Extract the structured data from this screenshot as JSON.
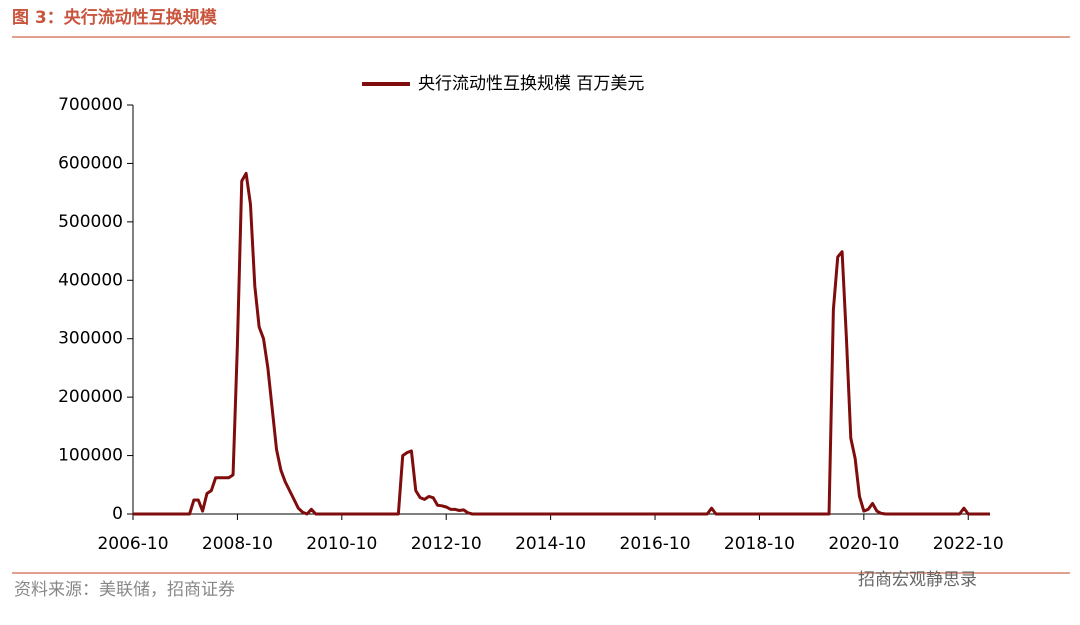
{
  "chart_data": {
    "type": "line",
    "title": "图 3：央行流动性互换规模",
    "source": "资料来源：美联储，招商证券",
    "watermark": "招商宏观静思录",
    "x": [
      "2006-10",
      "2007-11",
      "2007-12",
      "2008-01",
      "2008-02",
      "2008-03",
      "2008-04",
      "2008-05",
      "2008-06",
      "2008-08",
      "2008-09",
      "2008-10",
      "2008-11",
      "2008-12",
      "2009-01",
      "2009-02",
      "2009-03",
      "2009-04",
      "2009-05",
      "2009-06",
      "2009-07",
      "2009-08",
      "2009-09",
      "2009-10",
      "2009-11",
      "2009-12",
      "2010-01",
      "2010-02",
      "2010-03",
      "2010-04",
      "2011-11",
      "2011-12",
      "2012-01",
      "2012-02",
      "2012-03",
      "2012-04",
      "2012-05",
      "2012-06",
      "2012-07",
      "2012-08",
      "2012-09",
      "2012-10",
      "2012-11",
      "2012-12",
      "2013-01",
      "2013-02",
      "2013-03",
      "2013-04",
      "2017-10",
      "2017-11",
      "2017-12",
      "2020-02",
      "2020-03",
      "2020-04",
      "2020-05",
      "2020-06",
      "2020-07",
      "2020-08",
      "2020-09",
      "2020-10",
      "2020-11",
      "2020-12",
      "2021-01",
      "2021-02",
      "2021-03",
      "2022-08",
      "2022-09",
      "2022-10",
      "2023-03"
    ],
    "series": [
      {
        "name": "央行流动性互换规模 百万美元",
        "color": "#7f0d0d",
        "values": [
          0,
          0,
          24000,
          24000,
          5000,
          35000,
          40000,
          62000,
          62000,
          62000,
          67000,
          290000,
          570000,
          583000,
          530000,
          390000,
          320000,
          300000,
          250000,
          180000,
          110000,
          75000,
          55000,
          40000,
          25000,
          10000,
          3000,
          0,
          8000,
          0,
          0,
          100000,
          105000,
          108000,
          40000,
          28000,
          25000,
          30000,
          28000,
          15000,
          14000,
          12000,
          8000,
          8000,
          6000,
          7000,
          2000,
          0,
          0,
          10000,
          0,
          0,
          350000,
          440000,
          449000,
          300000,
          130000,
          95000,
          30000,
          5000,
          8000,
          18000,
          5000,
          1000,
          0,
          0,
          10000,
          0,
          0
        ]
      }
    ],
    "xlim": [
      "2006-10",
      "2023-03"
    ],
    "xticks": [
      "2006-10",
      "2008-10",
      "2010-10",
      "2012-10",
      "2014-10",
      "2016-10",
      "2018-10",
      "2020-10",
      "2022-10"
    ],
    "ylim": [
      0,
      700000
    ],
    "yticks": [
      0,
      100000,
      200000,
      300000,
      400000,
      500000,
      600000,
      700000
    ],
    "grid": false,
    "legend": "top"
  }
}
